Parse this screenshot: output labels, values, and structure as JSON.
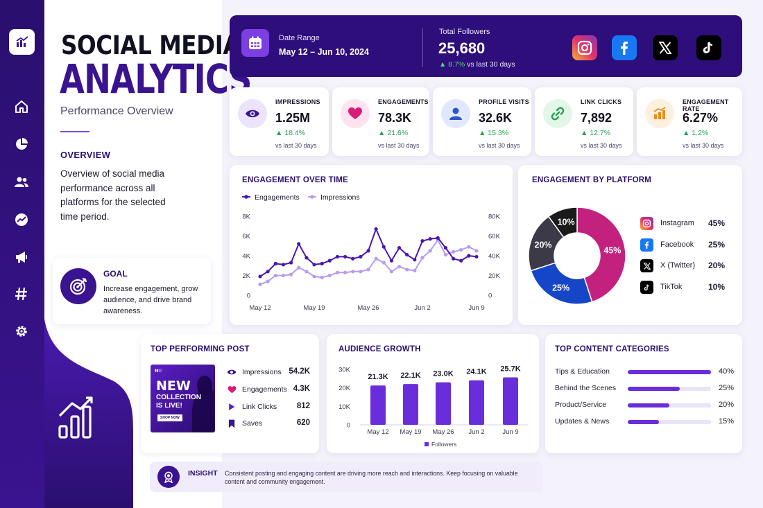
{
  "title_line1": "SOCIAL MEDIA",
  "title_line2": "ANALYTICS",
  "subtitle": "Performance Overview",
  "overview": {
    "heading": "OVERVIEW",
    "text": "Overview of social media performance across all platforms for the selected time period."
  },
  "goal": {
    "heading": "GOAL",
    "text": "Increase engagement, grow audience, and drive brand awareness."
  },
  "header": {
    "date_label": "Date Range",
    "date_value": "May 12 – Jun 10, 2024",
    "followers_label": "Total Followers",
    "followers_value": "25,680",
    "followers_change": "▲ 8.7%",
    "followers_vs": "vs last 30 days",
    "platforms": [
      "instagram-icon",
      "facebook-icon",
      "x-icon",
      "tiktok-icon"
    ]
  },
  "kpis": [
    {
      "label": "IMPRESSIONS",
      "value": "1.25M",
      "change": "▲ 18.4%",
      "vs": "vs last 30 days",
      "icon": "eye-icon",
      "icon_bg": "#ece4fb",
      "icon_color": "#3a1390"
    },
    {
      "label": "ENGAGEMENTS",
      "value": "78.3K",
      "change": "▲ 21.6%",
      "vs": "vs last 30 days",
      "icon": "heart-icon",
      "icon_bg": "#fde3ef",
      "icon_color": "#d81b78"
    },
    {
      "label": "PROFILE VISITS",
      "value": "32.6K",
      "change": "▲ 15.3%",
      "vs": "vs last 30 days",
      "icon": "user-icon",
      "icon_bg": "#e2e8fb",
      "icon_color": "#2f54c7"
    },
    {
      "label": "LINK CLICKS",
      "value": "7,892",
      "change": "▲ 12.7%",
      "vs": "vs last 30 days",
      "icon": "link-icon",
      "icon_bg": "#e2f7e8",
      "icon_color": "#23a04d"
    },
    {
      "label": "ENGAGEMENT RATE",
      "value": "6.27%",
      "change": "▲ 1.2%",
      "vs": "vs last 30 days",
      "icon": "bar-chart-icon",
      "icon_bg": "#fdf0df",
      "icon_color": "#f08a1c"
    }
  ],
  "engagement_over_time": {
    "heading": "ENGAGEMENT OVER TIME",
    "legend": [
      "Engagements",
      "Impressions"
    ]
  },
  "engagement_by_platform": {
    "heading": "ENGAGEMENT BY PLATFORM",
    "items": [
      {
        "name": "Instagram",
        "pct": "45%",
        "icon": "instagram-icon"
      },
      {
        "name": "Facebook",
        "pct": "25%",
        "icon": "facebook-icon"
      },
      {
        "name": "X (Twitter)",
        "pct": "20%",
        "icon": "x-icon"
      },
      {
        "name": "TikTok",
        "pct": "10%",
        "icon": "tiktok-icon"
      }
    ]
  },
  "top_post": {
    "heading": "TOP PERFORMING POST",
    "image_text": {
      "line1": "NEW",
      "line2": "COLLECTION",
      "line3": "IS LIVE!",
      "button": "SHOP NOW"
    },
    "stats": [
      {
        "label": "Impressions",
        "value": "54.2K",
        "icon": "eye-icon"
      },
      {
        "label": "Engagements",
        "value": "4.3K",
        "icon": "heart-icon"
      },
      {
        "label": "Link Clicks",
        "value": "812",
        "icon": "cursor-icon"
      },
      {
        "label": "Saves",
        "value": "620",
        "icon": "bookmark-icon"
      }
    ]
  },
  "audience_growth": {
    "heading": "AUDIENCE GROWTH",
    "legend": "Followers"
  },
  "top_categories": {
    "heading": "TOP CONTENT CATEGORIES",
    "items": [
      {
        "label": "Tips & Education",
        "pct_text": "40%",
        "pct": 40
      },
      {
        "label": "Behind the Scenes",
        "pct_text": "25%",
        "pct": 25
      },
      {
        "label": "Product/Service",
        "pct_text": "20%",
        "pct": 20
      },
      {
        "label": "Updates & News",
        "pct_text": "15%",
        "pct": 15
      }
    ]
  },
  "insight": {
    "heading": "INSIGHT",
    "text": "Consistent posting and engaging content are driving more reach and interactions. Keep focusing on valuable content and community engagement."
  },
  "colors": {
    "primary": "#3a1390",
    "accent": "#6a2ddb",
    "engagements_line": "#4a16b0",
    "impressions_line": "#b79cf0",
    "instagram": "#c2227e",
    "facebook": "#1646c8",
    "x": "#3c3a48",
    "tiktok": "#1a1a1a",
    "positive": "#21a44a"
  },
  "chart_data": [
    {
      "type": "line",
      "title": "ENGAGEMENT OVER TIME",
      "x_ticks": [
        "May 12",
        "May 19",
        "May 26",
        "Jun 2",
        "Jun 9"
      ],
      "x": [
        "May 12",
        "May 13",
        "May 14",
        "May 15",
        "May 16",
        "May 17",
        "May 18",
        "May 19",
        "May 20",
        "May 21",
        "May 22",
        "May 23",
        "May 24",
        "May 25",
        "May 26",
        "May 27",
        "May 28",
        "May 29",
        "May 30",
        "May 31",
        "Jun 1",
        "Jun 2",
        "Jun 3",
        "Jun 4",
        "Jun 5",
        "Jun 6",
        "Jun 7",
        "Jun 8",
        "Jun 9"
      ],
      "y_left_ticks": [
        "0",
        "2K",
        "4K",
        "6K",
        "8K"
      ],
      "y_right_ticks": [
        "0",
        "20K",
        "40K",
        "60K",
        "80K"
      ],
      "ylim_left": [
        0,
        8000
      ],
      "ylim_right": [
        0,
        80000
      ],
      "series": [
        {
          "name": "Engagements",
          "axis": "left",
          "values": [
            1900,
            2400,
            3200,
            3100,
            3300,
            5200,
            3800,
            3100,
            3200,
            3500,
            3900,
            3900,
            3700,
            3900,
            4500,
            6700,
            4900,
            3500,
            4800,
            4100,
            3600,
            5500,
            5700,
            5800,
            4800,
            3700,
            3500,
            4000,
            3900
          ]
        },
        {
          "name": "Impressions",
          "axis": "right",
          "values": [
            11000,
            14000,
            20000,
            20000,
            21000,
            28000,
            24000,
            19000,
            18000,
            20000,
            23000,
            23000,
            24000,
            24000,
            26000,
            37000,
            33000,
            24000,
            29000,
            26000,
            25000,
            38000,
            45000,
            56000,
            41000,
            44000,
            46000,
            49000,
            45000
          ]
        }
      ],
      "legend": "top-left",
      "grid": false
    },
    {
      "type": "pie",
      "title": "ENGAGEMENT BY PLATFORM",
      "donut": true,
      "slices": [
        {
          "name": "Instagram",
          "value": 45,
          "label": "45%"
        },
        {
          "name": "Facebook",
          "value": 25,
          "label": "25%"
        },
        {
          "name": "X (Twitter)",
          "value": 20,
          "label": "20%"
        },
        {
          "name": "TikTok",
          "value": 10,
          "label": "10%"
        }
      ],
      "legend": "right"
    },
    {
      "type": "bar",
      "title": "AUDIENCE GROWTH",
      "categories": [
        "May 12",
        "May 19",
        "May 26",
        "Jun 2",
        "Jun 9"
      ],
      "values": [
        21300,
        22100,
        23000,
        24100,
        25700
      ],
      "value_labels": [
        "21.3K",
        "22.1K",
        "23.0K",
        "24.1K",
        "25.7K"
      ],
      "y_ticks": [
        "0",
        "10K",
        "20K",
        "30K"
      ],
      "ylim": [
        0,
        30000
      ],
      "series_name": "Followers",
      "legend": "bottom"
    }
  ]
}
